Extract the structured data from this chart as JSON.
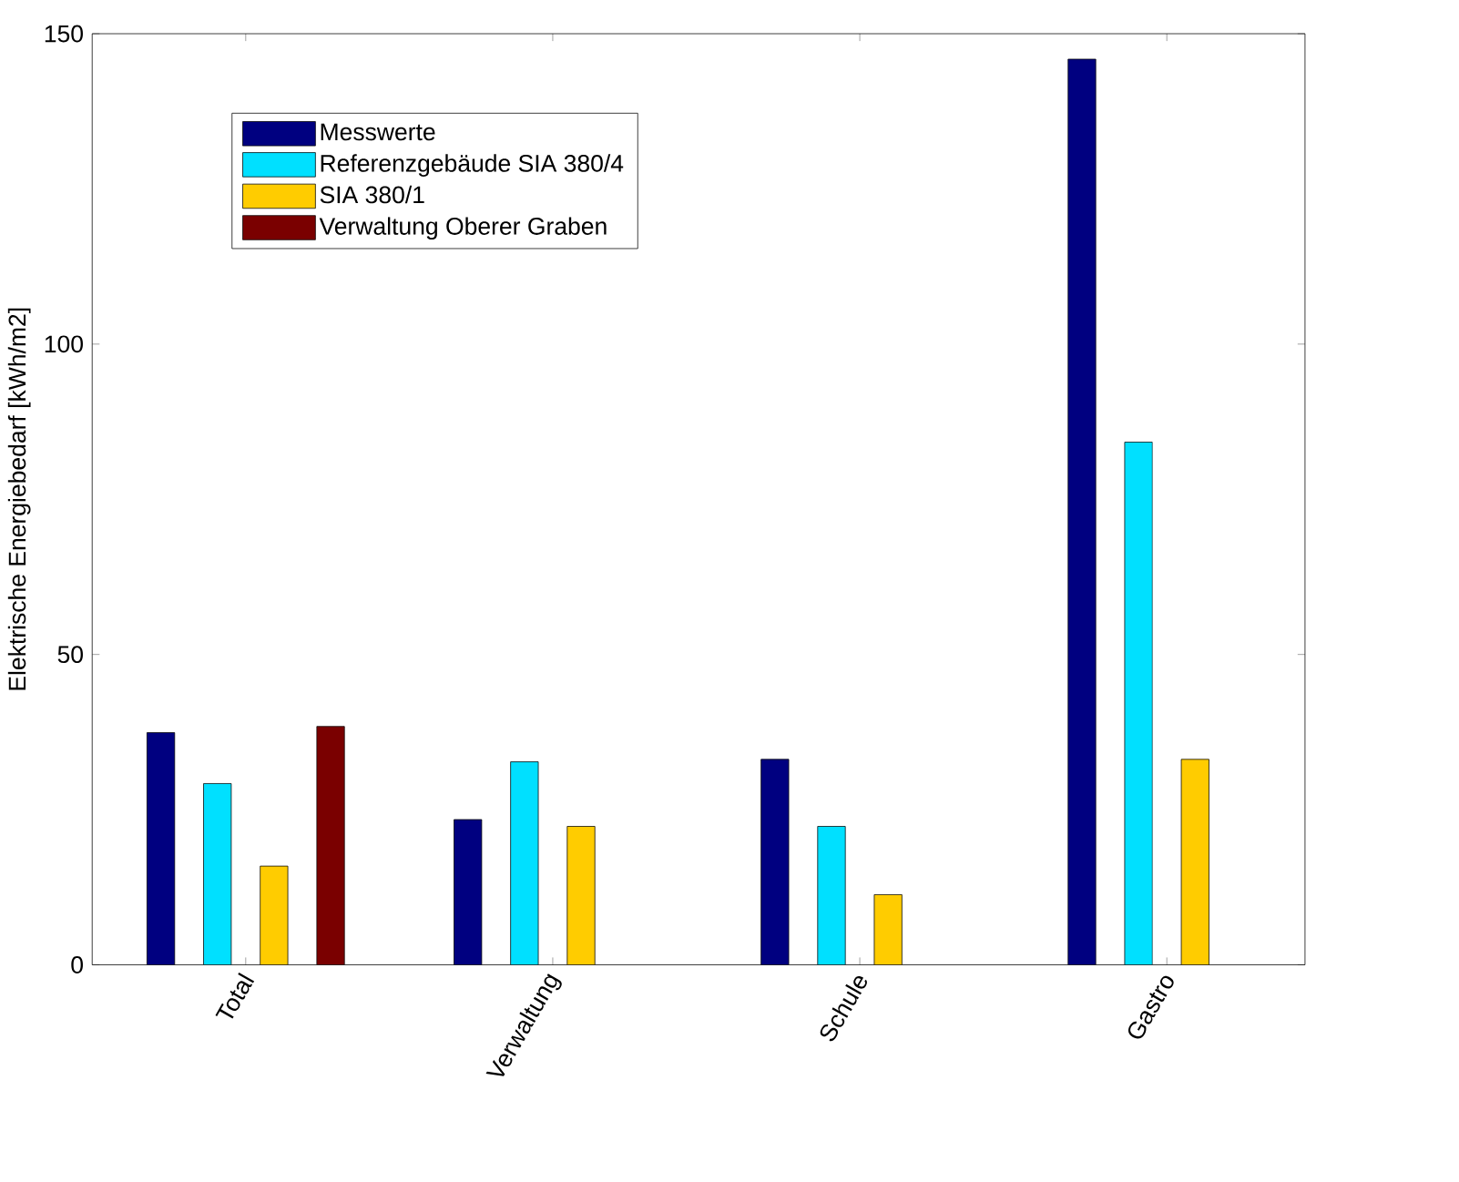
{
  "chart_data": {
    "type": "bar",
    "ylabel": "Elektrische Energiebedarf [kWh/m2]",
    "categories": [
      "Total",
      "Verwaltung",
      "Schule",
      "Gastro"
    ],
    "series": [
      {
        "name": "Messwerte",
        "color": "#000080",
        "values": [
          37.4,
          23.4,
          33.1,
          145.9
        ]
      },
      {
        "name": "Referenzgebäude SIA 380/4",
        "color": "#00e0ff",
        "values": [
          29.2,
          32.7,
          22.3,
          84.2
        ]
      },
      {
        "name": "SIA 380/1",
        "color": "#ffcc00",
        "values": [
          15.9,
          22.3,
          11.3,
          33.1
        ]
      },
      {
        "name": "Verwaltung Oberer Graben",
        "color": "#7a0000",
        "values": [
          38.4,
          null,
          null,
          null
        ]
      }
    ],
    "ylim": [
      0,
      150
    ],
    "yticks": [
      0,
      50,
      100,
      150
    ],
    "legend": "top left",
    "grid": false
  }
}
